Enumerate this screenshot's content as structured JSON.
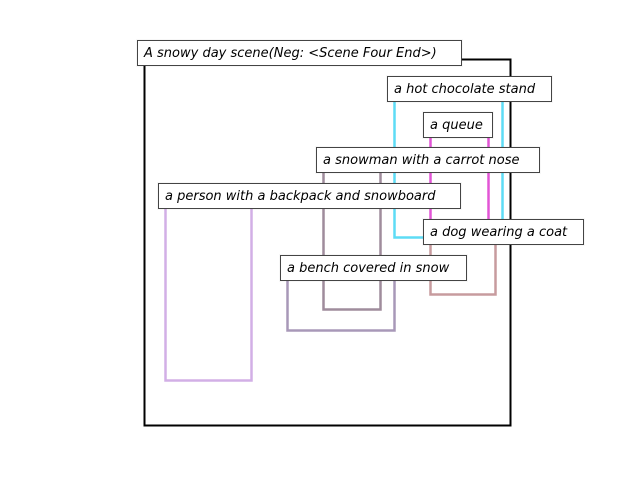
{
  "title": "A snowy day scene(Neg: <Scene Four End>)",
  "frame_color": "#000000",
  "boxes": [
    {
      "id": "hot-chocolate-stand",
      "label": "a hot chocolate stand",
      "color": "#5ddcf5"
    },
    {
      "id": "queue",
      "label": "a queue",
      "color": "#e255d6"
    },
    {
      "id": "snowman",
      "label": "a snowman with a carrot nose",
      "color": "#9f8c9c"
    },
    {
      "id": "person-backpack",
      "label": "a person with a backpack and snowboard",
      "color": "#d2afe6"
    },
    {
      "id": "dog-coat",
      "label": "a dog wearing a coat",
      "color": "#c79b9e"
    },
    {
      "id": "bench-snow",
      "label": "a bench covered in snow",
      "color": "#a898b8"
    }
  ]
}
